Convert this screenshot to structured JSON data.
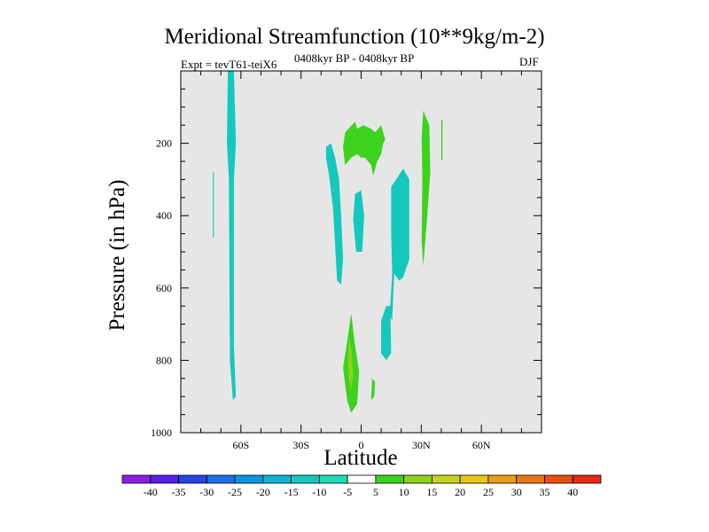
{
  "chart_data": {
    "type": "contour",
    "title": "Meridional Streamfunction (10**9kg/m-2)",
    "subtitle": "0408kyr BP - 0408kyr BP",
    "experiment": "Expt = tevT61-teiX6",
    "season": "DJF",
    "xlabel": "Latitude",
    "ylabel": "Pressure (in hPa)",
    "xlim": [
      -90,
      90
    ],
    "ylim": [
      1000,
      0
    ],
    "x_ticks": [
      {
        "value": -60,
        "label": "60S"
      },
      {
        "value": -30,
        "label": "30S"
      },
      {
        "value": 0,
        "label": "0"
      },
      {
        "value": 30,
        "label": "30N"
      },
      {
        "value": 60,
        "label": "60N"
      }
    ],
    "y_ticks": [
      200,
      400,
      600,
      800,
      1000
    ],
    "colorbar": {
      "levels": [
        "-40",
        "-35",
        "-30",
        "-25",
        "-20",
        "-15",
        "-10",
        "-5",
        "5",
        "10",
        "15",
        "20",
        "25",
        "30",
        "35",
        "40"
      ],
      "colors": [
        "#8a1ee6",
        "#5a1ee6",
        "#2846e6",
        "#1e6ee6",
        "#0a96dc",
        "#0ab4d2",
        "#14c8be",
        "#1edcb4",
        "#ffffff",
        "#3cd21e",
        "#8cd21e",
        "#c8d21e",
        "#e6c814",
        "#e6a014",
        "#e67814",
        "#e65014",
        "#e62814"
      ]
    },
    "regions": [
      {
        "level": "-10",
        "points": [
          [
            -66.5,
            0
          ],
          [
            -63.5,
            0
          ],
          [
            -62.5,
            200
          ],
          [
            -63.5,
            300
          ],
          [
            -63.5,
            760
          ],
          [
            -62.5,
            900
          ],
          [
            -64,
            910
          ],
          [
            -65.5,
            800
          ],
          [
            -66,
            300
          ],
          [
            -67,
            200
          ]
        ]
      },
      {
        "level": "-10",
        "points": [
          [
            -17.5,
            210
          ],
          [
            -15,
            200
          ],
          [
            -13,
            240
          ],
          [
            -11,
            300
          ],
          [
            -10,
            400
          ],
          [
            -9,
            520
          ],
          [
            -10,
            590
          ],
          [
            -12,
            580
          ],
          [
            -13,
            480
          ],
          [
            -14,
            380
          ],
          [
            -16,
            290
          ],
          [
            -17.5,
            240
          ]
        ]
      },
      {
        "level": "-10",
        "points": [
          [
            -3,
            340
          ],
          [
            0,
            330
          ],
          [
            1.5,
            400
          ],
          [
            0.5,
            500
          ],
          [
            -2.5,
            500
          ],
          [
            -4,
            410
          ]
        ]
      },
      {
        "level": "-10",
        "points": [
          [
            15,
            320
          ],
          [
            21,
            270
          ],
          [
            24,
            300
          ],
          [
            24,
            520
          ],
          [
            21,
            570
          ],
          [
            19,
            580
          ],
          [
            16.5,
            560
          ],
          [
            15.5,
            690
          ],
          [
            12.5,
            660
          ],
          [
            14.5,
            650
          ],
          [
            15,
            780
          ],
          [
            12.5,
            800
          ],
          [
            10,
            780
          ],
          [
            10,
            690
          ],
          [
            12.5,
            650
          ],
          [
            14.5,
            650
          ],
          [
            15.5,
            560
          ],
          [
            15,
            450
          ]
        ]
      },
      {
        "level": "-10",
        "points": [
          [
            -74,
            280
          ],
          [
            -73.5,
            280
          ],
          [
            -73.5,
            460
          ],
          [
            -74,
            460
          ]
        ]
      },
      {
        "level": "5",
        "points": [
          [
            -8,
            170
          ],
          [
            -3,
            140
          ],
          [
            -2,
            160
          ],
          [
            1,
            150
          ],
          [
            5,
            160
          ],
          [
            7,
            170
          ],
          [
            10,
            150
          ],
          [
            12,
            190
          ],
          [
            11,
            200
          ],
          [
            10,
            230
          ],
          [
            8,
            250
          ],
          [
            6,
            290
          ],
          [
            5,
            260
          ],
          [
            2,
            240
          ],
          [
            0,
            240
          ],
          [
            -2,
            230
          ],
          [
            -5,
            240
          ],
          [
            -8,
            260
          ],
          [
            -9,
            210
          ]
        ]
      },
      {
        "level": "5",
        "points": [
          [
            31,
            110
          ],
          [
            34,
            150
          ],
          [
            34.5,
            280
          ],
          [
            33,
            400
          ],
          [
            31,
            540
          ],
          [
            30.2,
            470
          ],
          [
            30.5,
            300
          ],
          [
            30.2,
            180
          ]
        ]
      },
      {
        "level": "5",
        "points": [
          [
            40,
            135
          ],
          [
            40.6,
            135
          ],
          [
            40.6,
            245
          ],
          [
            40,
            245
          ]
        ]
      },
      {
        "level": "5",
        "points": [
          [
            -7,
            750
          ],
          [
            -5,
            670
          ],
          [
            -3,
            760
          ],
          [
            -1,
            830
          ],
          [
            -2,
            920
          ],
          [
            -5,
            945
          ],
          [
            -7,
            910
          ],
          [
            -9,
            820
          ]
        ]
      },
      {
        "level": "5",
        "points": [
          [
            5.5,
            850
          ],
          [
            7,
            860
          ],
          [
            6.5,
            900
          ],
          [
            5,
            910
          ]
        ]
      },
      {
        "level": "10",
        "points": [
          [
            -6,
            740
          ],
          [
            -4.8,
            770
          ],
          [
            -4,
            840
          ],
          [
            -5,
            880
          ],
          [
            -6.2,
            850
          ],
          [
            -6.5,
            800
          ]
        ]
      }
    ]
  }
}
